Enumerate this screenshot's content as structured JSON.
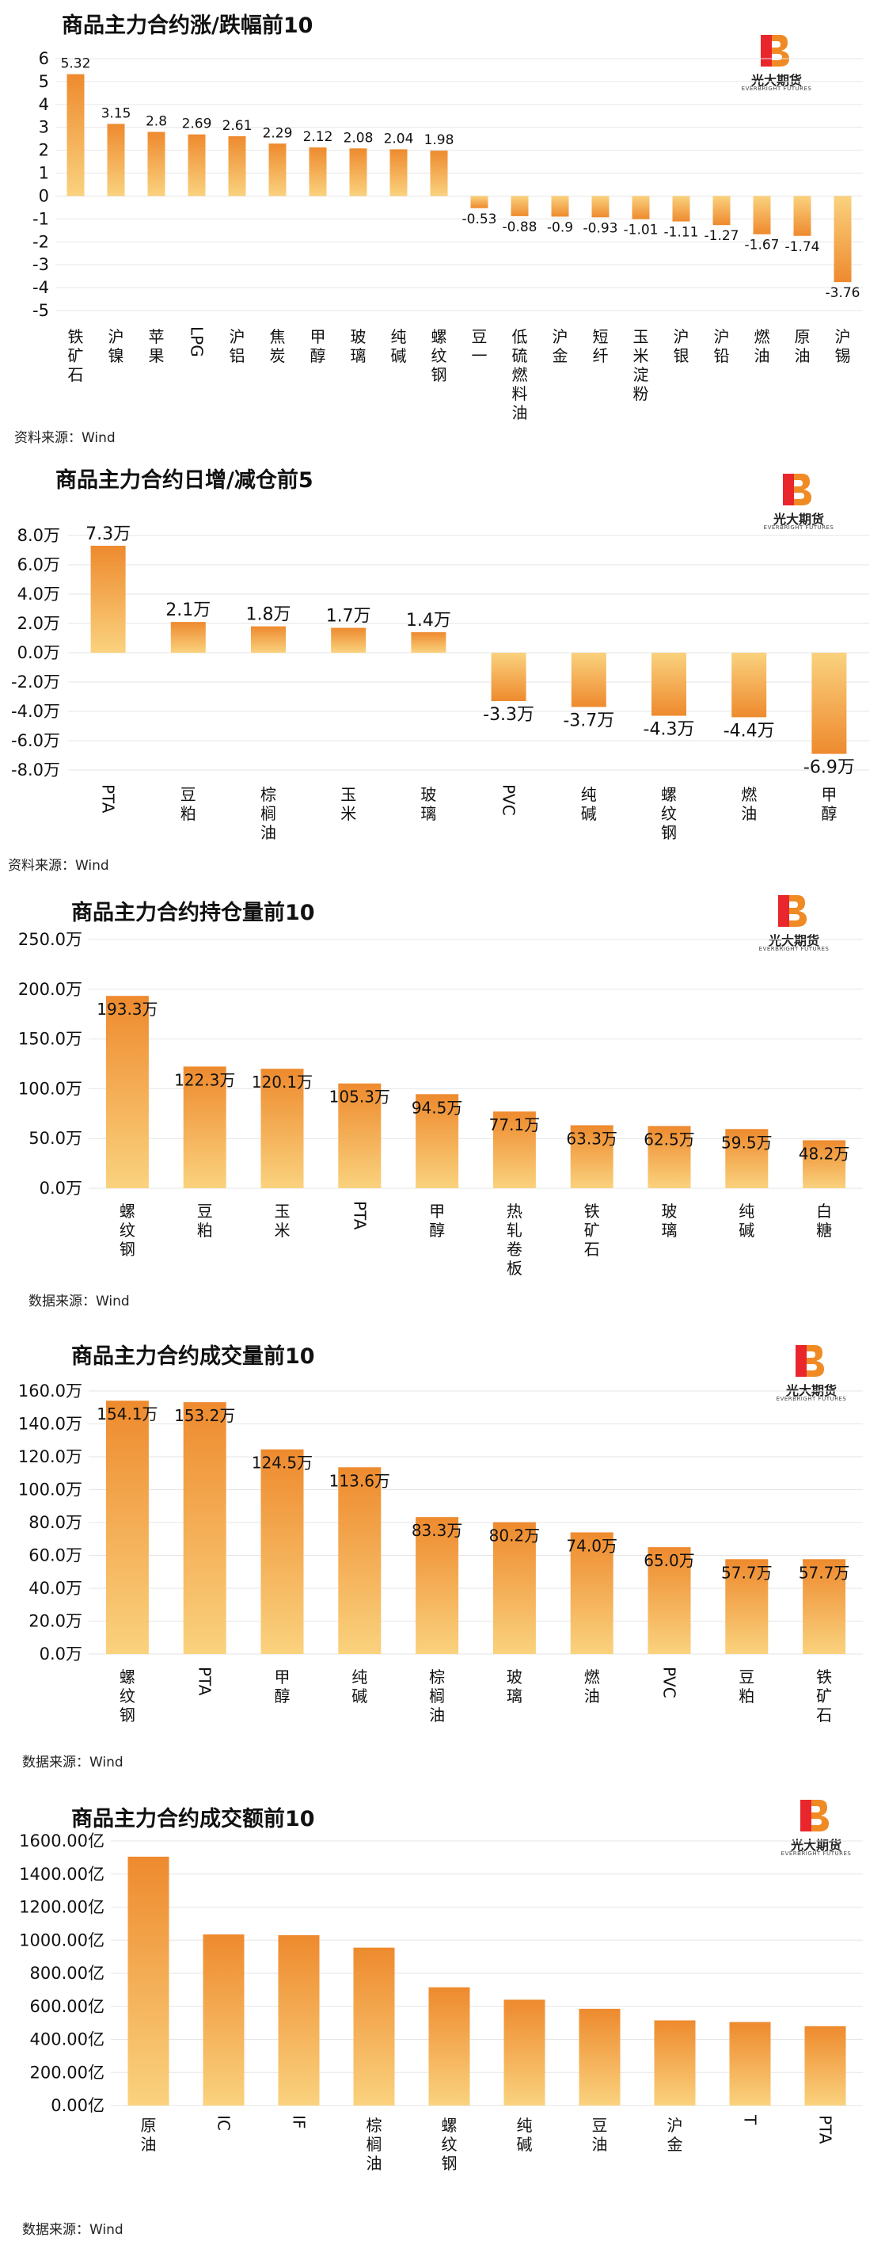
{
  "brand": {
    "name": "光大期货",
    "sub": "EVERBRIGHT FUTURES",
    "colors": [
      "#E8262C",
      "#F08A24"
    ]
  },
  "bar_gradient": {
    "top": "#EE8A2E",
    "bottom": "#FAD27E"
  },
  "chart_data": [
    {
      "type": "bar",
      "title": "商品主力合约涨/跌幅前10",
      "source": "资料来源：Wind",
      "categories": [
        "铁矿石",
        "沪镍",
        "苹果",
        "LPG",
        "沪铝",
        "焦炭",
        "甲醇",
        "玻璃",
        "纯碱",
        "螺纹钢",
        "豆一",
        "低硫燃料油",
        "沪金",
        "短纤",
        "玉米淀粉",
        "沪银",
        "沪铅",
        "燃油",
        "原油",
        "沪锡"
      ],
      "values": [
        5.32,
        3.15,
        2.8,
        2.69,
        2.61,
        2.29,
        2.12,
        2.08,
        2.04,
        1.98,
        -0.53,
        -0.88,
        -0.9,
        -0.93,
        -1.01,
        -1.11,
        -1.27,
        -1.67,
        -1.74,
        -3.76
      ],
      "value_labels": [
        "5.32",
        "3.15",
        "2.8",
        "2.69",
        "2.61",
        "2.29",
        "2.12",
        "2.08",
        "2.04",
        "1.98",
        "-0.53",
        "-0.88",
        "-0.9",
        "-0.93",
        "-1.01",
        "-1.11",
        "-1.27",
        "-1.67",
        "-1.74",
        "-3.76"
      ],
      "ylim": [
        -5,
        6
      ],
      "yticks": [
        "6",
        "5",
        "4",
        "3",
        "2",
        "1",
        "0",
        "-1",
        "-2",
        "-3",
        "-4",
        "-5"
      ],
      "ytick_values": [
        6,
        5,
        4,
        3,
        2,
        1,
        0,
        -1,
        -2,
        -3,
        -4,
        -5
      ],
      "grid": true
    },
    {
      "type": "bar",
      "title": "商品主力合约日增/减仓前5",
      "source": "资料来源：Wind",
      "categories": [
        "PTA",
        "豆粕",
        "棕榈油",
        "玉米",
        "玻璃",
        "PVC",
        "纯碱",
        "螺纹钢",
        "燃油",
        "甲醇"
      ],
      "values": [
        7.3,
        2.1,
        1.8,
        1.7,
        1.4,
        -3.3,
        -3.7,
        -4.3,
        -4.4,
        -6.9
      ],
      "value_labels": [
        "7.3万",
        "2.1万",
        "1.8万",
        "1.7万",
        "1.4万",
        "-3.3万",
        "-3.7万",
        "-4.3万",
        "-4.4万",
        "-6.9万"
      ],
      "ylim": [
        -8,
        8
      ],
      "yticks": [
        "8.0万",
        "6.0万",
        "4.0万",
        "2.0万",
        "0.0万",
        "-2.0万",
        "-4.0万",
        "-6.0万",
        "-8.0万"
      ],
      "ytick_values": [
        8,
        6,
        4,
        2,
        0,
        -2,
        -4,
        -6,
        -8
      ],
      "grid": true
    },
    {
      "type": "bar",
      "title": "商品主力合约持仓量前10",
      "source": "数据来源：Wind",
      "categories": [
        "螺纹钢",
        "豆粕",
        "玉米",
        "PTA",
        "甲醇",
        "热轧卷板",
        "铁矿石",
        "玻璃",
        "纯碱",
        "白糖"
      ],
      "values": [
        193.3,
        122.3,
        120.1,
        105.3,
        94.5,
        77.1,
        63.3,
        62.5,
        59.5,
        48.2
      ],
      "value_labels": [
        "193.3万",
        "122.3万",
        "120.1万",
        "105.3万",
        "94.5万",
        "77.1万",
        "63.3万",
        "62.5万",
        "59.5万",
        "48.2万"
      ],
      "ylim": [
        0,
        250
      ],
      "yticks": [
        "250.0万",
        "200.0万",
        "150.0万",
        "100.0万",
        "50.0万",
        "0.0万"
      ],
      "ytick_values": [
        250,
        200,
        150,
        100,
        50,
        0
      ],
      "grid": true
    },
    {
      "type": "bar",
      "title": "商品主力合约成交量前10",
      "source": "数据来源：Wind",
      "categories": [
        "螺纹钢",
        "PTA",
        "甲醇",
        "纯碱",
        "棕榈油",
        "玻璃",
        "燃油",
        "PVC",
        "豆粕",
        "铁矿石"
      ],
      "values": [
        154.1,
        153.2,
        124.5,
        113.6,
        83.3,
        80.2,
        74.0,
        65.0,
        57.7,
        57.7
      ],
      "value_labels": [
        "154.1万",
        "153.2万",
        "124.5万",
        "113.6万",
        "83.3万",
        "80.2万",
        "74.0万",
        "65.0万",
        "57.7万",
        "57.7万"
      ],
      "ylim": [
        0,
        160
      ],
      "yticks": [
        "160.0万",
        "140.0万",
        "120.0万",
        "100.0万",
        "80.0万",
        "60.0万",
        "40.0万",
        "20.0万",
        "0.0万"
      ],
      "ytick_values": [
        160,
        140,
        120,
        100,
        80,
        60,
        40,
        20,
        0
      ],
      "grid": true
    },
    {
      "type": "bar",
      "title": "商品主力合约成交额前10",
      "source": "数据来源：Wind",
      "categories": [
        "原油",
        "IC",
        "IF",
        "棕榈油",
        "螺纹钢",
        "纯碱",
        "豆油",
        "沪金",
        "T",
        "PTA"
      ],
      "values": [
        1505,
        1035,
        1030,
        955,
        715,
        640,
        585,
        515,
        505,
        480
      ],
      "value_labels": [],
      "ylim": [
        0,
        1600
      ],
      "yticks": [
        "1600.00亿",
        "1400.00亿",
        "1200.00亿",
        "1000.00亿",
        "800.00亿",
        "600.00亿",
        "400.00亿",
        "200.00亿",
        "0.00亿"
      ],
      "ytick_values": [
        1600,
        1400,
        1200,
        1000,
        800,
        600,
        400,
        200,
        0
      ],
      "grid": true
    }
  ]
}
